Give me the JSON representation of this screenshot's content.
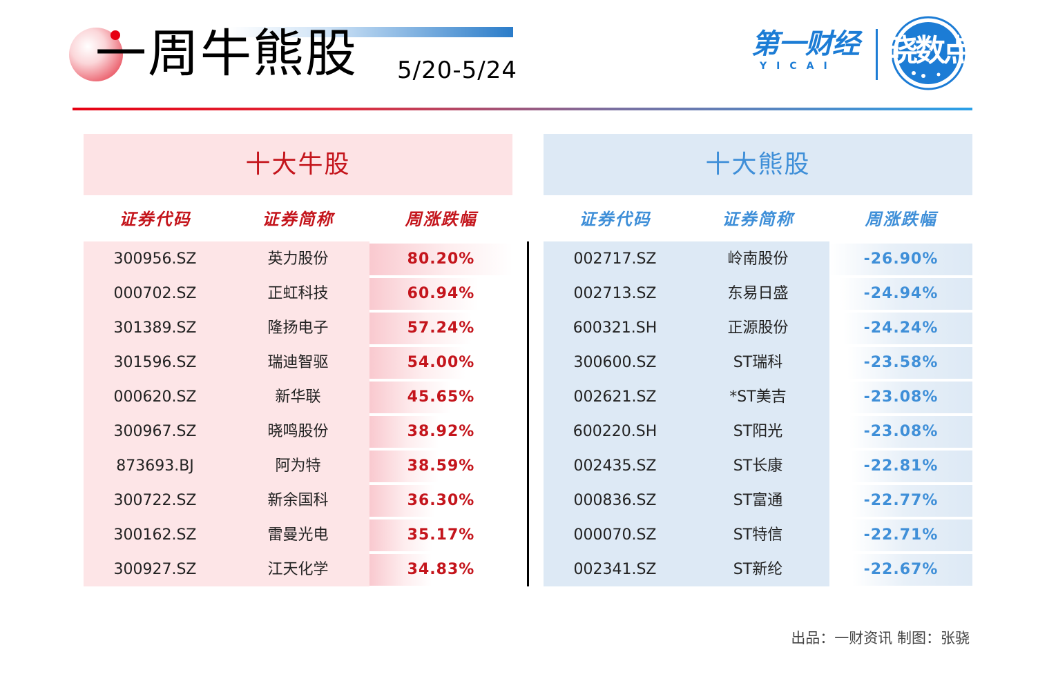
{
  "header": {
    "title": "一周牛熊股",
    "date_range": "5/20-5/24",
    "logo_main": "第一财经",
    "logo_sub": "YICAI",
    "badge_text": "晓数点"
  },
  "bull": {
    "panel_title": "十大牛股",
    "col_code": "证券代码",
    "col_name": "证券简称",
    "col_change": "周涨跌幅"
  },
  "bear": {
    "panel_title": "十大熊股",
    "col_code": "证券代码",
    "col_name": "证券简称",
    "col_change": "周涨跌幅"
  },
  "footer": {
    "credit": "出品：一财资讯  制图：张骁"
  },
  "colors": {
    "bull_accent": "#c4151c",
    "bear_accent": "#3f8fd8"
  },
  "chart_data": [
    {
      "type": "table",
      "title": "十大牛股",
      "columns": [
        "证券代码",
        "证券简称",
        "周涨跌幅"
      ],
      "rows": [
        {
          "code": "300956.SZ",
          "name": "英力股份",
          "change": "80.20%",
          "value": 80.2
        },
        {
          "code": "000702.SZ",
          "name": "正虹科技",
          "change": "60.94%",
          "value": 60.94
        },
        {
          "code": "301389.SZ",
          "name": "隆扬电子",
          "change": "57.24%",
          "value": 57.24
        },
        {
          "code": "301596.SZ",
          "name": "瑞迪智驱",
          "change": "54.00%",
          "value": 54.0
        },
        {
          "code": "000620.SZ",
          "name": "新华联",
          "change": "45.65%",
          "value": 45.65
        },
        {
          "code": "300967.SZ",
          "name": "晓鸣股份",
          "change": "38.92%",
          "value": 38.92
        },
        {
          "code": "873693.BJ",
          "name": "阿为特",
          "change": "38.59%",
          "value": 38.59
        },
        {
          "code": "300722.SZ",
          "name": "新余国科",
          "change": "36.30%",
          "value": 36.3
        },
        {
          "code": "300162.SZ",
          "name": "雷曼光电",
          "change": "35.17%",
          "value": 35.17
        },
        {
          "code": "300927.SZ",
          "name": "江天化学",
          "change": "34.83%",
          "value": 34.83
        }
      ]
    },
    {
      "type": "table",
      "title": "十大熊股",
      "columns": [
        "证券代码",
        "证券简称",
        "周涨跌幅"
      ],
      "rows": [
        {
          "code": "002717.SZ",
          "name": "岭南股份",
          "change": "-26.90%",
          "value": -26.9
        },
        {
          "code": "002713.SZ",
          "name": "东易日盛",
          "change": "-24.94%",
          "value": -24.94
        },
        {
          "code": "600321.SH",
          "name": "正源股份",
          "change": "-24.24%",
          "value": -24.24
        },
        {
          "code": "300600.SZ",
          "name": "ST瑞科",
          "change": "-23.58%",
          "value": -23.58
        },
        {
          "code": "002621.SZ",
          "name": "*ST美吉",
          "change": "-23.08%",
          "value": -23.08
        },
        {
          "code": "600220.SH",
          "name": "ST阳光",
          "change": "-23.08%",
          "value": -23.08
        },
        {
          "code": "002435.SZ",
          "name": "ST长康",
          "change": "-22.81%",
          "value": -22.81
        },
        {
          "code": "000836.SZ",
          "name": "ST富通",
          "change": "-22.77%",
          "value": -22.77
        },
        {
          "code": "000070.SZ",
          "name": "ST特信",
          "change": "-22.71%",
          "value": -22.71
        },
        {
          "code": "002341.SZ",
          "name": "ST新纶",
          "change": "-22.67%",
          "value": -22.67
        }
      ]
    }
  ]
}
